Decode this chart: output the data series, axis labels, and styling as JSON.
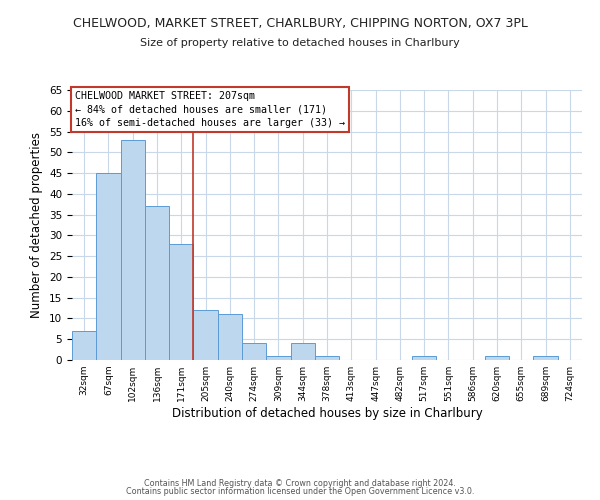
{
  "title_line1": "CHELWOOD, MARKET STREET, CHARLBURY, CHIPPING NORTON, OX7 3PL",
  "title_line2": "Size of property relative to detached houses in Charlbury",
  "xlabel": "Distribution of detached houses by size in Charlbury",
  "ylabel": "Number of detached properties",
  "bin_labels": [
    "32sqm",
    "67sqm",
    "102sqm",
    "136sqm",
    "171sqm",
    "205sqm",
    "240sqm",
    "274sqm",
    "309sqm",
    "344sqm",
    "378sqm",
    "413sqm",
    "447sqm",
    "482sqm",
    "517sqm",
    "551sqm",
    "586sqm",
    "620sqm",
    "655sqm",
    "689sqm",
    "724sqm"
  ],
  "bar_values": [
    7,
    45,
    53,
    37,
    28,
    12,
    11,
    4,
    1,
    4,
    1,
    0,
    0,
    0,
    1,
    0,
    0,
    1,
    0,
    1,
    0
  ],
  "bar_color": "#bdd7ee",
  "bar_edge_color": "#5b9bd5",
  "ylim": [
    0,
    65
  ],
  "yticks": [
    0,
    5,
    10,
    15,
    20,
    25,
    30,
    35,
    40,
    45,
    50,
    55,
    60,
    65
  ],
  "vline_x": 5,
  "vline_color": "#c0392b",
  "annotation_title": "CHELWOOD MARKET STREET: 207sqm",
  "annotation_line2": "← 84% of detached houses are smaller (171)",
  "annotation_line3": "16% of semi-detached houses are larger (33) →",
  "footer_line1": "Contains HM Land Registry data © Crown copyright and database right 2024.",
  "footer_line2": "Contains public sector information licensed under the Open Government Licence v3.0.",
  "background_color": "#ffffff",
  "grid_color": "#c8d8e8"
}
